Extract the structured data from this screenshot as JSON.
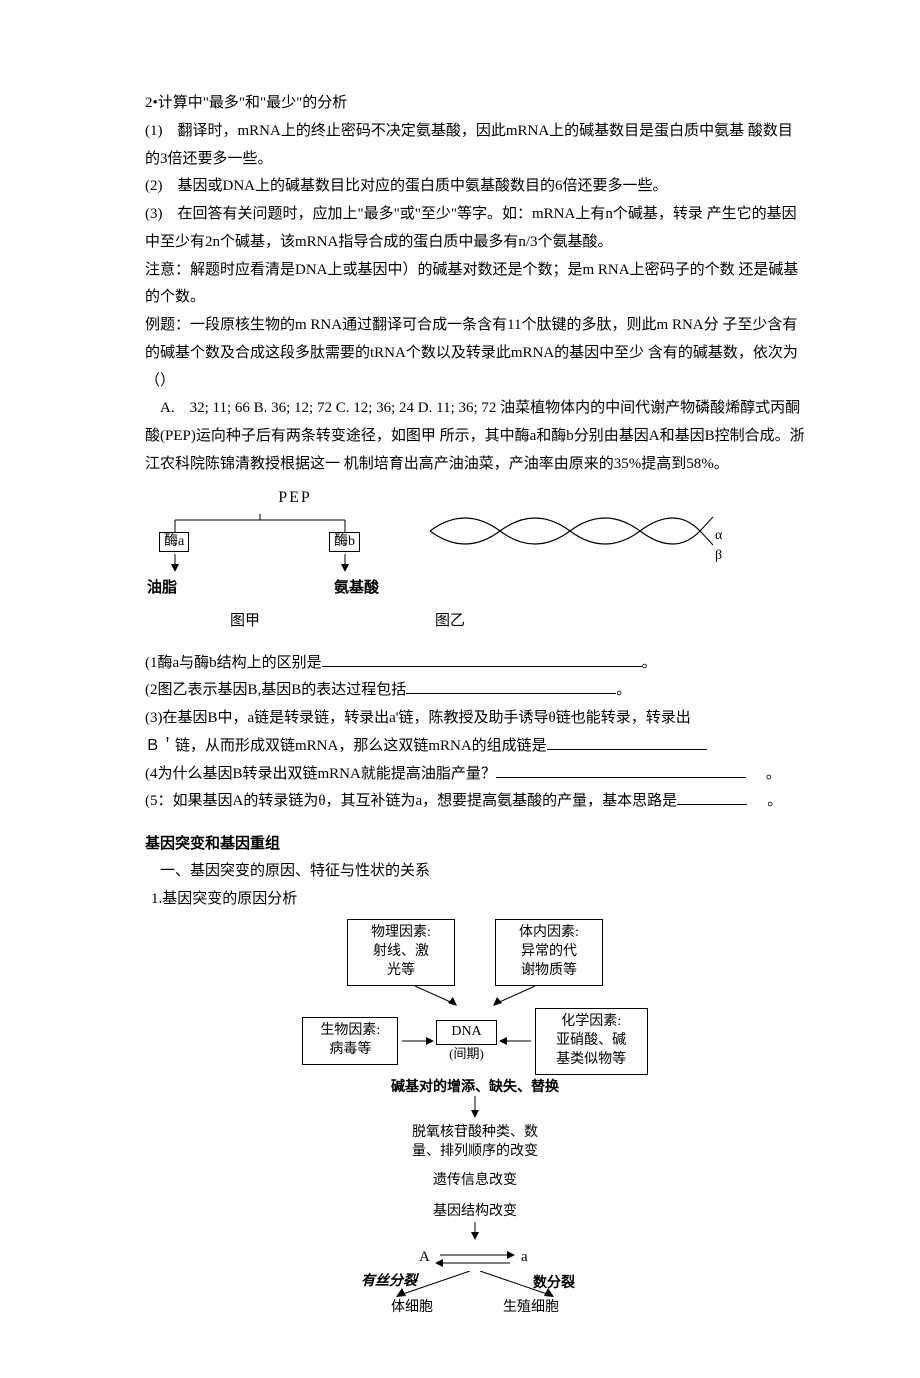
{
  "p1": "2•计算中\"最多\"和\"最少\"的分析",
  "p2": "(1)　翻译时，mRNA上的终止密码不决定氨基酸，因此mRNA上的碱基数目是蛋白质中氨基 酸数目的3倍还要多一些。",
  "p3": "(2)　基因或DNA上的碱基数目比对应的蛋白质中氨基酸数目的6倍还要多一些。",
  "p4": "(3)　在回答有关问题时，应加上\"最多\"或\"至少\"等字。如：mRNA上有n个碱基，转录 产生它的基因中至少有2n个碱基，该mRNA指导合成的蛋白质中最多有n/3个氨基酸。",
  "p5": "注意：解题时应看清是DNA上或基因中）的碱基对数还是个数；是m RNA上密码子的个数 还是碱基的个数。",
  "p6": "例题：一段原核生物的m RNA通过翻译可合成一条含有11个肽键的多肽，则此m RNA分 子至少含有的碱基个数及合成这段多肽需要的tRNA个数以及转录此mRNA的基因中至少 含有的碱基数，依次为（）",
  "p7": "　A.　32; 11; 66 B. 36; 12; 72 C. 12; 36; 24 D. 11; 36; 72 油菜植物体内的中间代谢产物磷酸烯醇式丙酮酸(PEP)运向种子后有两条转变途径，如图甲 所示，其中酶a和酶b分别由基因A和基因B控制合成。浙江农科院陈锦清教授根据这一 机制培育出高产油油菜，产油率由原来的35%提高到58%。",
  "pep": {
    "top": "PEP",
    "enz_a": "酶a",
    "enz_b": "酶b",
    "left": "油脂",
    "right": "氨基酸",
    "alpha": "α",
    "beta": "β"
  },
  "cap1": "图甲",
  "cap2": "图乙",
  "q1a": "(1酶a与酶b结构上的区别是",
  "q1b": "。",
  "q2a": "(2图乙表示基因B,基因B的表达过程包括",
  "q2b": "。",
  "q3a": "(3)在基因B中，a链是转录链，转录出a'链，陈教授及助手诱导θ链也能转录，转录出",
  "q3b": "Ｂ＇链，从而形成双链mRNA，那么这双链mRNA的组成链是",
  "q4a": "(4为什么基因B转录出双链mRNA就能提高油脂产量？",
  "q4b": "。",
  "q5a": "(5：如果基因A的转录链为θ，其互补链为a，想要提高氨基酸的产量，基本思路是",
  "q5b": "。",
  "sec": "基因突变和基因重组",
  "sub1": "一、基因突变的原因、特征与性状的关系",
  "sub2": "1.基因突变的原因分析",
  "flow": {
    "box_phys": "物理因素:\n射线、激\n光等",
    "box_body": "体内因素:\n异常的代\n谢物质等",
    "box_bio": "生物因素:\n病毒等",
    "box_chem": "化学因素:\n亚硝酸、碱\n基类似物等",
    "dna": "DNA",
    "period": "(间期)",
    "b1": "碱基对的增添、缺失、替换",
    "b2": "脱氧核苷酸种类、数\n量、排列顺序的改变",
    "b3": "遗传信息改变",
    "b4": "基因结构改变",
    "A": "A",
    "a": "a",
    "mitosis": "有丝分裂",
    "meiosis": "数分裂",
    "somatic": "体细胞",
    "germ": "生殖细胞"
  }
}
